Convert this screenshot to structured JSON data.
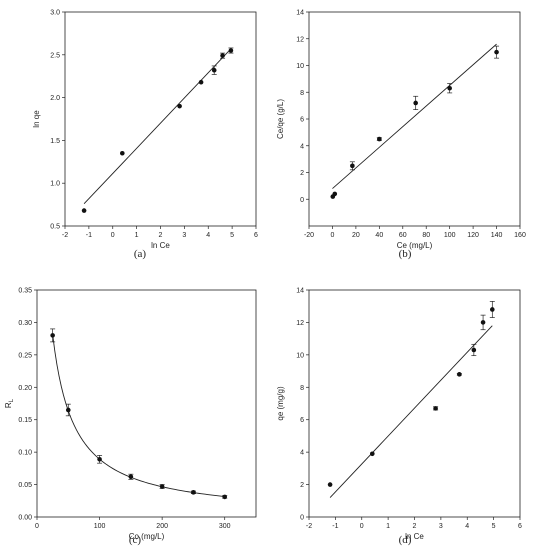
{
  "chart_data": [
    {
      "type": "scatter",
      "panel_label": "(a)",
      "xlabel": "ln Ce",
      "ylabel": "ln qe",
      "xlim": [
        -2,
        6
      ],
      "ylim": [
        0.5,
        3.0
      ],
      "xticks": [
        "-2",
        "-1",
        "0",
        "1",
        "2",
        "3",
        "4",
        "5",
        "6"
      ],
      "yticks": [
        "0.5",
        "1.0",
        "1.5",
        "2.0",
        "2.5",
        "3.0"
      ],
      "grid": false,
      "points": [
        {
          "x": -1.2,
          "y": 0.68,
          "err": 0
        },
        {
          "x": 0.4,
          "y": 1.35,
          "err": 0
        },
        {
          "x": 2.8,
          "y": 1.9,
          "err": 0
        },
        {
          "x": 3.7,
          "y": 2.18,
          "err": 0
        },
        {
          "x": 4.25,
          "y": 2.32,
          "err": 0.05
        },
        {
          "x": 4.6,
          "y": 2.49,
          "err": 0.03
        },
        {
          "x": 4.95,
          "y": 2.55,
          "err": 0.03
        }
      ],
      "fit_line": [
        [
          -1.2,
          0.76
        ],
        [
          4.95,
          2.57
        ]
      ]
    },
    {
      "type": "scatter",
      "panel_label": "(b)",
      "xlabel": "Ce (mg/L)",
      "ylabel": "Ce/qe (g/L)",
      "xlim": [
        -20,
        160
      ],
      "ylim": [
        -2,
        14
      ],
      "xticks": [
        "-20",
        "0",
        "20",
        "40",
        "60",
        "80",
        "100",
        "120",
        "140",
        "160"
      ],
      "yticks": [
        "0",
        "2",
        "4",
        "6",
        "8",
        "10",
        "12",
        "14"
      ],
      "grid": false,
      "points": [
        {
          "x": 0.3,
          "y": 0.2,
          "err": 0
        },
        {
          "x": 2,
          "y": 0.4,
          "err": 0
        },
        {
          "x": 17,
          "y": 2.5,
          "err": 0.3
        },
        {
          "x": 40,
          "y": 4.5,
          "err": 0.1
        },
        {
          "x": 71,
          "y": 7.2,
          "err": 0.5
        },
        {
          "x": 100,
          "y": 8.3,
          "err": 0.35
        },
        {
          "x": 140,
          "y": 11.0,
          "err": 0.45
        }
      ],
      "fit_line": [
        [
          0,
          0.8
        ],
        [
          140,
          11.6
        ]
      ]
    },
    {
      "type": "scatter",
      "panel_label": "(c)",
      "xlabel": "Co (mg/L)",
      "ylabel": "R",
      "ylabel_subscript": "L",
      "xlim": [
        0,
        350
      ],
      "ylim": [
        0,
        0.35
      ],
      "xticks": [
        "0",
        "100",
        "200",
        "300"
      ],
      "yticks": [
        "0.00",
        "0.05",
        "0.10",
        "0.15",
        "0.20",
        "0.25",
        "0.30",
        "0.35"
      ],
      "grid": false,
      "points": [
        {
          "x": 25,
          "y": 0.28,
          "err": 0.01
        },
        {
          "x": 50,
          "y": 0.165,
          "err": 0.009
        },
        {
          "x": 100,
          "y": 0.089,
          "err": 0.006
        },
        {
          "x": 150,
          "y": 0.062,
          "err": 0.004
        },
        {
          "x": 200,
          "y": 0.047,
          "err": 0.003
        },
        {
          "x": 250,
          "y": 0.038,
          "err": 0.002
        },
        {
          "x": 300,
          "y": 0.031,
          "err": 0.002
        }
      ],
      "fit_curve_constant_KL": 0.1022
    },
    {
      "type": "scatter",
      "panel_label": "(d)",
      "xlabel": "ln Ce",
      "ylabel": "qe (mg/g)",
      "xlim": [
        -2,
        6
      ],
      "ylim": [
        0,
        14
      ],
      "xticks": [
        "-2",
        "-1",
        "0",
        "1",
        "2",
        "3",
        "4",
        "5",
        "6"
      ],
      "yticks": [
        "0",
        "2",
        "4",
        "6",
        "8",
        "10",
        "12",
        "14"
      ],
      "grid": false,
      "points": [
        {
          "x": -1.2,
          "y": 2.0,
          "err": 0
        },
        {
          "x": 0.4,
          "y": 3.9,
          "err": 0
        },
        {
          "x": 2.8,
          "y": 6.7,
          "err": 0.1
        },
        {
          "x": 3.7,
          "y": 8.8,
          "err": 0.05
        },
        {
          "x": 4.25,
          "y": 10.3,
          "err": 0.35
        },
        {
          "x": 4.6,
          "y": 12.0,
          "err": 0.45
        },
        {
          "x": 4.95,
          "y": 12.8,
          "err": 0.5
        }
      ],
      "fit_line": [
        [
          -1.2,
          1.2
        ],
        [
          4.95,
          11.8
        ]
      ]
    }
  ]
}
